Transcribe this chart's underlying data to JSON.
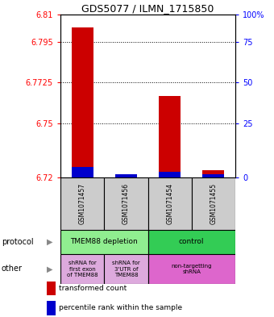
{
  "title": "GDS5077 / ILMN_1715850",
  "samples": [
    "GSM1071457",
    "GSM1071456",
    "GSM1071454",
    "GSM1071455"
  ],
  "red_values": [
    6.803,
    6.72,
    6.765,
    6.724
  ],
  "blue_values": [
    6.726,
    6.722,
    6.723,
    6.722
  ],
  "red_base": 6.72,
  "ylim_min": 6.72,
  "ylim_max": 6.81,
  "yticks_left": [
    6.72,
    6.75,
    6.7725,
    6.795,
    6.81
  ],
  "ytick_labels_left": [
    "6.72",
    "6.75",
    "6.7725",
    "6.795",
    "6.81"
  ],
  "yticks_right": [
    6.72,
    6.75,
    6.7725,
    6.795,
    6.81
  ],
  "ytick_labels_right": [
    "0",
    "25",
    "50",
    "75",
    "100%"
  ],
  "red_color": "#CC0000",
  "blue_color": "#0000CC",
  "sample_bg_color": "#CCCCCC",
  "prot_color_1": "#90EE90",
  "prot_color_2": "#33CC55",
  "other_color_12": "#DDAADD",
  "other_color_3": "#DD66CC"
}
